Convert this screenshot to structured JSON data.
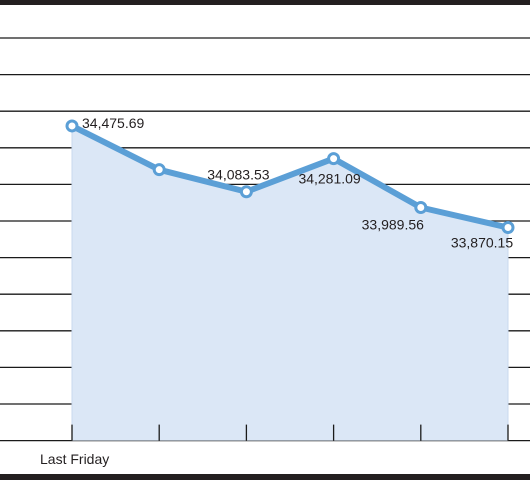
{
  "chart_data": {
    "type": "line",
    "title": "",
    "xlabel": "",
    "ylabel": "",
    "categories": [
      "Last Friday",
      "",
      "",
      "",
      "",
      ""
    ],
    "series": [
      {
        "values": [
          34475.69,
          34215,
          34083.53,
          34281.09,
          33989.56,
          33870.15
        ]
      }
    ],
    "data_labels": [
      "34,475.69",
      "",
      "34,083.53",
      "34,281.09",
      "33,989.56",
      "33,870.15"
    ],
    "ylim": [
      32600,
      35000
    ],
    "grid": true,
    "area_fill": true,
    "colors": {
      "line": "#5b9fd6",
      "area": "#dbe7f6",
      "marker_fill": "#ffffff",
      "text": "#231f20",
      "frame": "#231f20"
    }
  }
}
